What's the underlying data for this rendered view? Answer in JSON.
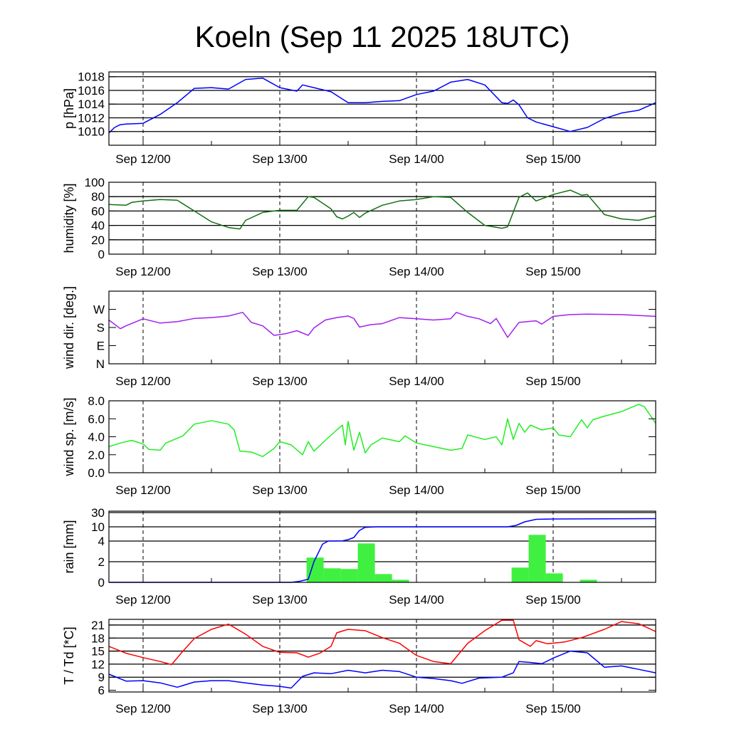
{
  "chart_data": {
    "type": "line",
    "title": "Koeln (Sep 11 2025 18UTC)",
    "x_unit": "hours after Sep 11 18UTC",
    "xlim": [
      0,
      96
    ],
    "xticks": [
      {
        "hour": 6,
        "label": "Sep 12/00"
      },
      {
        "hour": 30,
        "label": "Sep 13/00"
      },
      {
        "hour": 54,
        "label": "Sep 14/00"
      },
      {
        "hour": 78,
        "label": "Sep 15/00"
      }
    ],
    "panels": [
      {
        "ylabel": "p [hPa]",
        "ylim": [
          1008,
          1018.7
        ],
        "yticks": [
          {
            "value": 1010,
            "label": "1010"
          },
          {
            "value": 1012,
            "label": "1012"
          },
          {
            "value": 1014,
            "label": "1014"
          },
          {
            "value": 1016,
            "label": "1016"
          },
          {
            "value": 1018,
            "label": "1018"
          }
        ],
        "grid": [
          1010,
          1012,
          1014,
          1016,
          1018
        ],
        "series": [
          {
            "name": "pressure",
            "color": "#0000ff",
            "x": [
              0,
              1,
              2,
              3,
              6,
              9,
              12,
              15,
              18,
              21,
              24,
              27,
              30,
              33,
              34,
              36,
              39,
              42,
              45,
              48,
              51,
              54,
              57,
              60,
              63,
              66,
              69,
              70,
              71,
              72,
              73.5,
              75,
              78,
              81,
              84,
              87,
              90,
              93,
              96
            ],
            "y": [
              1009.8,
              1010.6,
              1011.0,
              1011.1,
              1011.2,
              1012.5,
              1014.2,
              1016.3,
              1016.4,
              1016.2,
              1017.6,
              1017.8,
              1016.4,
              1015.9,
              1016.8,
              1016.4,
              1015.8,
              1014.2,
              1014.2,
              1014.4,
              1014.5,
              1015.4,
              1015.9,
              1017.2,
              1017.6,
              1016.8,
              1014.2,
              1014.1,
              1014.6,
              1013.9,
              1012.0,
              1011.4,
              1010.7,
              1010.0,
              1010.6,
              1011.9,
              1012.7,
              1013.1,
              1014.2
            ]
          }
        ]
      },
      {
        "ylabel": "humidity [%]",
        "ylim": [
          0,
          100
        ],
        "yticks": [
          {
            "value": 0,
            "label": "0"
          },
          {
            "value": 20,
            "label": "20"
          },
          {
            "value": 40,
            "label": "40"
          },
          {
            "value": 60,
            "label": "60"
          },
          {
            "value": 80,
            "label": "80"
          },
          {
            "value": 100,
            "label": "100"
          }
        ],
        "grid": [
          20,
          40,
          60,
          80
        ],
        "series": [
          {
            "name": "humidity",
            "color": "#127012",
            "x": [
              0,
              3,
              4,
              6,
              9,
              12,
              15,
              18,
              21,
              23,
              24,
              27,
              30,
              33,
              35,
              36,
              39,
              40,
              41,
              42,
              43,
              44,
              45,
              48,
              51,
              54,
              57,
              60,
              63,
              66,
              69,
              70,
              72,
              73.5,
              75,
              78,
              81,
              83,
              84,
              87,
              90,
              93,
              96
            ],
            "y": [
              69,
              68,
              72,
              74,
              76,
              75,
              60,
              45,
              37,
              35,
              47,
              58,
              61,
              61,
              80,
              79,
              63,
              52,
              49,
              53,
              58,
              51,
              57,
              68,
              74,
              76,
              80,
              79,
              58,
              40,
              36,
              38,
              79,
              85,
              74,
              83,
              89,
              82,
              83,
              55,
              49,
              47,
              53
            ]
          }
        ]
      },
      {
        "ylabel": "wind dir. [deg.]",
        "ylim": [
          0,
          360
        ],
        "yticks": [
          {
            "value": 0,
            "label": "N"
          },
          {
            "value": 90,
            "label": "E"
          },
          {
            "value": 180,
            "label": "S"
          },
          {
            "value": 270,
            "label": "W"
          }
        ],
        "grid": [],
        "series": [
          {
            "name": "wind direction",
            "color": "#a020f0",
            "x": [
              0,
              2,
              3,
              6,
              9,
              12,
              15,
              18,
              21,
              23.5,
              25,
              27,
              29,
              31,
              33,
              35,
              36,
              38,
              40,
              42,
              43,
              44,
              46,
              48,
              51,
              54,
              57,
              60,
              61,
              63,
              65,
              67,
              68,
              70,
              72,
              75,
              76,
              78,
              81,
              84,
              90,
              96
            ],
            "y": [
              217,
              174,
              188,
              223,
              202,
              209,
              225,
              229,
              237,
              255,
              205,
              188,
              141,
              149,
              164,
              141,
              178,
              217,
              229,
              237,
              225,
              182,
              194,
              199,
              229,
              223,
              217,
              223,
              255,
              235,
              223,
              199,
              225,
              131,
              205,
              213,
              197,
              235,
              244,
              246,
              244,
              235
            ]
          }
        ]
      },
      {
        "ylabel": "wind sp. [m/s]",
        "ylim": [
          0,
          8
        ],
        "yticks": [
          {
            "value": 0,
            "label": "0.0"
          },
          {
            "value": 2,
            "label": "2.0"
          },
          {
            "value": 4,
            "label": "4.0"
          },
          {
            "value": 6,
            "label": "6.0"
          },
          {
            "value": 8,
            "label": "8.0"
          }
        ],
        "grid": [],
        "series": [
          {
            "name": "wind speed",
            "color": "#22ee22",
            "x": [
              0,
              2,
              4,
              6,
              7,
              9,
              10,
              13,
              15,
              18,
              21,
              22,
              23,
              25,
              27,
              29,
              30,
              32,
              34,
              35,
              36,
              38,
              40,
              41,
              41.5,
              42,
              43,
              44,
              45,
              46,
              48,
              51,
              52,
              54,
              57,
              60,
              62,
              63,
              66,
              68,
              69,
              70,
              71,
              72,
              73,
              74,
              76,
              78,
              79,
              81,
              83,
              84,
              85,
              87,
              90,
              93,
              94,
              96
            ],
            "y": [
              2.9,
              3.3,
              3.6,
              3.2,
              2.6,
              2.5,
              3.3,
              4.1,
              5.4,
              5.8,
              5.4,
              4.75,
              2.4,
              2.3,
              1.8,
              2.7,
              3.45,
              3.1,
              2.0,
              3.45,
              2.4,
              3.6,
              4.75,
              5.3,
              3.1,
              5.7,
              2.5,
              4.5,
              2.2,
              3.1,
              3.85,
              3.45,
              4.1,
              3.3,
              2.9,
              2.5,
              2.7,
              4.2,
              3.7,
              4.0,
              3.1,
              6.0,
              3.7,
              5.5,
              4.5,
              5.3,
              4.75,
              5.0,
              4.2,
              4.0,
              5.9,
              5.0,
              5.9,
              6.3,
              6.8,
              7.6,
              7.35,
              5.5
            ]
          }
        ]
      },
      {
        "ylabel": "rain [mm]",
        "ylim": [
          0,
          30
        ],
        "yticks": [
          {
            "value": 0,
            "label": "0"
          },
          {
            "value": 2,
            "label": "2"
          },
          {
            "value": 4,
            "label": "4"
          },
          {
            "value": 10,
            "label": "10"
          },
          {
            "value": 30,
            "label": "30"
          }
        ],
        "grid": [
          2,
          4,
          10,
          30
        ],
        "bars": {
          "name": "3-hourly rain",
          "color": "#40f040",
          "width_hours": 3,
          "start": [
            34.7,
            37.7,
            40.7,
            43.7,
            46.7,
            49.7,
            70.7,
            73.7,
            76.7,
            82.7
          ],
          "values": [
            2.4,
            1.36,
            1.29,
            3.77,
            0.8,
            0.25,
            1.43,
            6.6,
            0.87,
            0.25
          ]
        },
        "series": [
          {
            "name": "accumulated rain",
            "color": "#0000ff",
            "x": [
              0,
              32,
              33.5,
              35,
              36,
              37.5,
              38.5,
              41,
              42,
              43,
              44,
              45,
              47,
              70,
              71.5,
              73,
              75,
              78,
              96
            ],
            "y": [
              0,
              0,
              0.1,
              0.3,
              2.0,
              3.7,
              4.0,
              4.1,
              4.6,
              5.5,
              8.5,
              9.8,
              10,
              10,
              12,
              17,
              20.5,
              21,
              21.5
            ]
          }
        ]
      },
      {
        "ylabel": "T / Td [*C]",
        "ylim": [
          5.6,
          22.3
        ],
        "yticks": [
          {
            "value": 6,
            "label": "6"
          },
          {
            "value": 9,
            "label": "9"
          },
          {
            "value": 12,
            "label": "12"
          },
          {
            "value": 15,
            "label": "15"
          },
          {
            "value": 18,
            "label": "18"
          },
          {
            "value": 21,
            "label": "21"
          }
        ],
        "grid": [
          9,
          12,
          15,
          18,
          21
        ],
        "series": [
          {
            "name": "temperature",
            "color": "#ff0000",
            "x": [
              0,
              3,
              6,
              9,
              11,
              13,
              15,
              18,
              21,
              24,
              27,
              30,
              33,
              35,
              37,
              39,
              40,
              42,
              45,
              48,
              51,
              54,
              57,
              60,
              63,
              66,
              69,
              71,
              72,
              74,
              75,
              77,
              80,
              83,
              87,
              90,
              93,
              96
            ],
            "y": [
              16.1,
              14.5,
              13.5,
              12.6,
              11.9,
              15.0,
              17.9,
              20.0,
              21.2,
              18.9,
              16.1,
              14.7,
              14.6,
              13.6,
              14.5,
              16.1,
              19.2,
              20.0,
              19.7,
              18.1,
              16.8,
              14.0,
              12.6,
              12.1,
              16.8,
              19.7,
              22.1,
              22.1,
              17.6,
              16.1,
              17.4,
              16.7,
              17.1,
              18.1,
              20.0,
              21.8,
              21.3,
              19.5
            ]
          },
          {
            "name": "dew point",
            "color": "#0000ff",
            "x": [
              0,
              3,
              6,
              9,
              12,
              15,
              18,
              21,
              24,
              27,
              30,
              32,
              34,
              36,
              39,
              42,
              45,
              48,
              51,
              54,
              57,
              60,
              62,
              65,
              69,
              71,
              72,
              74,
              76,
              78,
              81,
              84,
              87,
              90,
              93,
              96
            ],
            "y": [
              9.7,
              8.1,
              8.2,
              7.7,
              6.7,
              7.9,
              8.2,
              8.2,
              7.7,
              7.2,
              6.9,
              6.5,
              9.2,
              10.0,
              9.8,
              10.6,
              10.0,
              10.6,
              10.3,
              9.0,
              8.7,
              8.2,
              7.6,
              8.8,
              9.0,
              10.0,
              12.6,
              12.4,
              12.1,
              13.4,
              15.0,
              14.6,
              11.3,
              11.6,
              10.8,
              10.0
            ]
          }
        ]
      }
    ]
  }
}
